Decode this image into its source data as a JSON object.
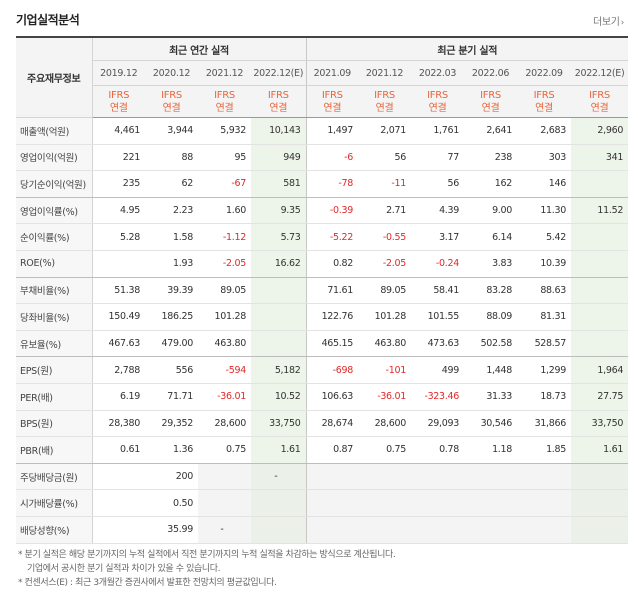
{
  "header": {
    "title": "기업실적분석",
    "more_label": "더보기",
    "more_arrow": "›"
  },
  "table": {
    "corner_label": "주요재무정보",
    "group_annual": "최근 연간 실적",
    "group_quarter": "최근 분기 실적",
    "periods": [
      "2019.12",
      "2020.12",
      "2021.12",
      "2022.12(E)",
      "2021.09",
      "2021.12",
      "2022.03",
      "2022.06",
      "2022.09",
      "2022.12(E)"
    ],
    "basis_top": [
      "IFRS",
      "IFRS",
      "IFRS",
      "IFRS",
      "IFRS",
      "IFRS",
      "IFRS",
      "IFRS",
      "IFRS",
      "IFRS"
    ],
    "basis_bottom": [
      "연결",
      "연결",
      "연결",
      "연결",
      "연결",
      "연결",
      "연결",
      "연결",
      "연결",
      "연결"
    ],
    "rows": [
      {
        "label": "매출액(억원)",
        "values": [
          "4,461",
          "3,944",
          "5,932",
          "10,143",
          "1,497",
          "2,071",
          "1,761",
          "2,641",
          "2,683",
          "2,960"
        ]
      },
      {
        "label": "영업이익(억원)",
        "values": [
          "221",
          "88",
          "95",
          "949",
          "-6",
          "56",
          "77",
          "238",
          "303",
          "341"
        ]
      },
      {
        "label": "당기순이익(억원)",
        "values": [
          "235",
          "62",
          "-67",
          "581",
          "-78",
          "-11",
          "56",
          "162",
          "146",
          ""
        ]
      },
      {
        "label": "영업이익률(%)",
        "values": [
          "4.95",
          "2.23",
          "1.60",
          "9.35",
          "-0.39",
          "2.71",
          "4.39",
          "9.00",
          "11.30",
          "11.52"
        ]
      },
      {
        "label": "순이익률(%)",
        "values": [
          "5.28",
          "1.58",
          "-1.12",
          "5.73",
          "-5.22",
          "-0.55",
          "3.17",
          "6.14",
          "5.42",
          ""
        ]
      },
      {
        "label": "ROE(%)",
        "values": [
          "",
          "1.93",
          "-2.05",
          "16.62",
          "0.82",
          "-2.05",
          "-0.24",
          "3.83",
          "10.39",
          ""
        ]
      },
      {
        "label": "부채비율(%)",
        "values": [
          "51.38",
          "39.39",
          "89.05",
          "",
          "71.61",
          "89.05",
          "58.41",
          "83.28",
          "88.63",
          ""
        ]
      },
      {
        "label": "당좌비율(%)",
        "values": [
          "150.49",
          "186.25",
          "101.28",
          "",
          "122.76",
          "101.28",
          "101.55",
          "88.09",
          "81.31",
          ""
        ]
      },
      {
        "label": "유보율(%)",
        "values": [
          "467.63",
          "479.00",
          "463.80",
          "",
          "465.15",
          "463.80",
          "473.63",
          "502.58",
          "528.57",
          ""
        ]
      },
      {
        "label": "EPS(원)",
        "values": [
          "2,788",
          "556",
          "-594",
          "5,182",
          "-698",
          "-101",
          "499",
          "1,448",
          "1,299",
          "1,964"
        ]
      },
      {
        "label": "PER(배)",
        "values": [
          "6.19",
          "71.71",
          "-36.01",
          "10.52",
          "106.63",
          "-36.01",
          "-323.46",
          "31.33",
          "18.73",
          "27.75"
        ]
      },
      {
        "label": "BPS(원)",
        "values": [
          "28,380",
          "29,352",
          "28,600",
          "33,750",
          "28,674",
          "28,600",
          "29,093",
          "30,546",
          "31,866",
          "33,750"
        ]
      },
      {
        "label": "PBR(배)",
        "values": [
          "0.61",
          "1.36",
          "0.75",
          "1.61",
          "0.87",
          "0.75",
          "0.78",
          "1.18",
          "1.85",
          "1.61"
        ]
      },
      {
        "label": "주당배당금(원)",
        "values": [
          "",
          "200",
          "",
          "-",
          "",
          "",
          "",
          "",
          "",
          ""
        ]
      },
      {
        "label": "시가배당률(%)",
        "values": [
          "",
          "0.50",
          "",
          "",
          "",
          "",
          "",
          "",
          "",
          ""
        ]
      },
      {
        "label": "배당성향(%)",
        "values": [
          "",
          "35.99",
          "-",
          "",
          "",
          "",
          "",
          "",
          "",
          ""
        ]
      }
    ]
  },
  "notes": [
    "* 분기 실적은 해당 분기까지의 누적 실적에서 직전 분기까지의 누적 실적을 차감하는 방식으로 계산됩니다.",
    "기업에서 공시한 분기 실적과 차이가 있을 수 있습니다.",
    "* 컨센서스(E) : 최근 3개월간 증권사에서 발표한 전망치의 평균값입니다."
  ]
}
